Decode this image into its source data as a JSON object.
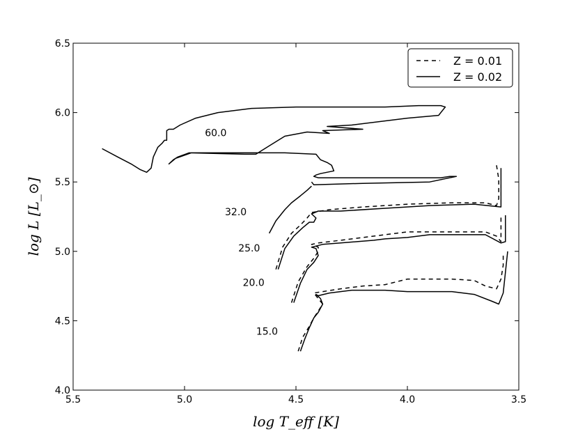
{
  "chart_data": {
    "type": "line",
    "xlabel": "log T_eff [K]",
    "ylabel": "log L [L_⊙]",
    "xlim": [
      5.5,
      3.5
    ],
    "ylim": [
      4.0,
      6.5
    ],
    "x_inverted": true,
    "xticks": [
      "5.5",
      "5.0",
      "4.5",
      "4.0",
      "3.5"
    ],
    "xtick_values": [
      5.5,
      5.0,
      4.5,
      4.0,
      3.5
    ],
    "yticks": [
      "4.0",
      "4.5",
      "5.0",
      "5.5",
      "6.0",
      "6.5"
    ],
    "ytick_values": [
      4.0,
      4.5,
      5.0,
      5.5,
      6.0,
      6.5
    ],
    "grid": false,
    "legend_position": "top-right",
    "legend": [
      {
        "label": "Z = 0.01",
        "style": "dashed"
      },
      {
        "label": "Z = 0.02",
        "style": "solid"
      }
    ],
    "annotations": [
      {
        "text": "60.0",
        "x": 4.86,
        "y": 5.83
      },
      {
        "text": "32.0",
        "x": 4.77,
        "y": 5.26
      },
      {
        "text": "25.0",
        "x": 4.71,
        "y": 5.0
      },
      {
        "text": "20.0",
        "x": 4.69,
        "y": 4.75
      },
      {
        "text": "15.0",
        "x": 4.63,
        "y": 4.4
      }
    ],
    "series": [
      {
        "style": "solid",
        "mass": "60.0",
        "points": [
          [
            5.37,
            5.74
          ],
          [
            5.3,
            5.68
          ],
          [
            5.24,
            5.63
          ],
          [
            5.2,
            5.59
          ],
          [
            5.17,
            5.57
          ],
          [
            5.15,
            5.6
          ],
          [
            5.14,
            5.68
          ],
          [
            5.12,
            5.75
          ],
          [
            5.1,
            5.78
          ],
          [
            5.09,
            5.8
          ],
          [
            5.08,
            5.8
          ],
          [
            5.08,
            5.87
          ],
          [
            5.07,
            5.88
          ],
          [
            5.05,
            5.88
          ],
          [
            5.02,
            5.91
          ],
          [
            4.95,
            5.96
          ],
          [
            4.85,
            6.0
          ],
          [
            4.7,
            6.03
          ],
          [
            4.5,
            6.04
          ],
          [
            4.3,
            6.04
          ],
          [
            4.1,
            6.04
          ],
          [
            3.95,
            6.05
          ],
          [
            3.85,
            6.05
          ],
          [
            3.83,
            6.04
          ],
          [
            3.86,
            5.98
          ],
          [
            4.0,
            5.96
          ],
          [
            4.25,
            5.91
          ],
          [
            4.36,
            5.9
          ],
          [
            4.2,
            5.88
          ],
          [
            4.38,
            5.87
          ],
          [
            4.35,
            5.85
          ],
          [
            4.45,
            5.86
          ],
          [
            4.55,
            5.83
          ],
          [
            4.62,
            5.76
          ],
          [
            4.68,
            5.7
          ],
          [
            4.73,
            5.7
          ],
          [
            4.98,
            5.71
          ],
          [
            5.03,
            5.68
          ],
          [
            5.05,
            5.66
          ],
          [
            5.07,
            5.63
          ],
          [
            5.04,
            5.67
          ],
          [
            4.97,
            5.71
          ],
          [
            4.55,
            5.71
          ],
          [
            4.41,
            5.7
          ],
          [
            4.39,
            5.66
          ],
          [
            4.36,
            5.64
          ],
          [
            4.34,
            5.62
          ],
          [
            4.33,
            5.58
          ],
          [
            4.39,
            5.56
          ],
          [
            4.41,
            5.55
          ],
          [
            4.42,
            5.54
          ],
          [
            4.4,
            5.53
          ],
          [
            4.1,
            5.53
          ],
          [
            3.85,
            5.53
          ],
          [
            3.81,
            5.54
          ],
          [
            3.78,
            5.54
          ],
          [
            3.84,
            5.52
          ],
          [
            3.9,
            5.5
          ],
          [
            4.2,
            5.49
          ],
          [
            4.42,
            5.48
          ],
          [
            4.43,
            5.5
          ]
        ]
      },
      {
        "style": "solid",
        "mass": "32.0",
        "points": [
          [
            4.62,
            5.13
          ],
          [
            4.59,
            5.22
          ],
          [
            4.55,
            5.3
          ],
          [
            4.52,
            5.35
          ],
          [
            4.48,
            5.4
          ],
          [
            4.45,
            5.44
          ],
          [
            4.43,
            5.47
          ]
        ]
      },
      {
        "style": "dashed",
        "mass": "25.0",
        "points": [
          [
            4.59,
            4.87
          ],
          [
            4.56,
            5.03
          ],
          [
            4.52,
            5.13
          ],
          [
            4.48,
            5.19
          ],
          [
            4.45,
            5.24
          ],
          [
            4.43,
            5.28
          ],
          [
            4.35,
            5.3
          ],
          [
            4.2,
            5.32
          ],
          [
            4.0,
            5.34
          ],
          [
            3.8,
            5.35
          ],
          [
            3.65,
            5.35
          ],
          [
            3.6,
            5.33
          ],
          [
            3.59,
            5.38
          ],
          [
            3.59,
            5.52
          ],
          [
            3.6,
            5.62
          ]
        ]
      },
      {
        "style": "solid",
        "mass": "25.0",
        "points": [
          [
            4.58,
            4.87
          ],
          [
            4.55,
            5.02
          ],
          [
            4.51,
            5.11
          ],
          [
            4.47,
            5.17
          ],
          [
            4.44,
            5.21
          ],
          [
            4.42,
            5.21
          ],
          [
            4.41,
            5.24
          ],
          [
            4.43,
            5.27
          ],
          [
            4.4,
            5.29
          ],
          [
            4.3,
            5.29
          ],
          [
            4.1,
            5.31
          ],
          [
            3.9,
            5.33
          ],
          [
            3.7,
            5.34
          ],
          [
            3.58,
            5.32
          ],
          [
            3.58,
            5.4
          ],
          [
            3.58,
            5.5
          ],
          [
            3.58,
            5.6
          ]
        ]
      },
      {
        "style": "dashed",
        "mass": "20.0",
        "points": [
          [
            4.52,
            4.63
          ],
          [
            4.49,
            4.78
          ],
          [
            4.45,
            4.89
          ],
          [
            4.42,
            4.95
          ],
          [
            4.4,
            5.0
          ],
          [
            4.4,
            5.03
          ],
          [
            4.43,
            5.05
          ],
          [
            4.4,
            5.06
          ],
          [
            4.35,
            5.07
          ],
          [
            4.2,
            5.1
          ],
          [
            4.1,
            5.12
          ],
          [
            4.0,
            5.14
          ],
          [
            3.8,
            5.14
          ],
          [
            3.65,
            5.14
          ],
          [
            3.6,
            5.11
          ],
          [
            3.58,
            5.07
          ],
          [
            3.58,
            5.18
          ],
          [
            3.58,
            5.25
          ]
        ]
      },
      {
        "style": "solid",
        "mass": "20.0",
        "points": [
          [
            4.51,
            4.63
          ],
          [
            4.48,
            4.77
          ],
          [
            4.45,
            4.87
          ],
          [
            4.42,
            4.92
          ],
          [
            4.4,
            4.97
          ],
          [
            4.41,
            5.02
          ],
          [
            4.43,
            5.03
          ],
          [
            4.38,
            5.05
          ],
          [
            4.3,
            5.06
          ],
          [
            4.15,
            5.08
          ],
          [
            4.1,
            5.09
          ],
          [
            4.0,
            5.1
          ],
          [
            3.9,
            5.12
          ],
          [
            3.8,
            5.12
          ],
          [
            3.65,
            5.12
          ],
          [
            3.58,
            5.06
          ],
          [
            3.56,
            5.07
          ],
          [
            3.56,
            5.15
          ],
          [
            3.56,
            5.26
          ]
        ]
      },
      {
        "style": "dashed",
        "mass": "15.0",
        "points": [
          [
            4.49,
            4.28
          ],
          [
            4.47,
            4.38
          ],
          [
            4.44,
            4.46
          ],
          [
            4.42,
            4.52
          ],
          [
            4.4,
            4.57
          ],
          [
            4.38,
            4.62
          ],
          [
            4.42,
            4.7
          ],
          [
            4.38,
            4.71
          ],
          [
            4.3,
            4.73
          ],
          [
            4.2,
            4.75
          ],
          [
            4.1,
            4.76
          ],
          [
            4.05,
            4.78
          ],
          [
            4.0,
            4.8
          ],
          [
            3.8,
            4.8
          ],
          [
            3.7,
            4.79
          ],
          [
            3.65,
            4.75
          ],
          [
            3.6,
            4.73
          ],
          [
            3.58,
            4.8
          ],
          [
            3.57,
            4.9
          ],
          [
            3.57,
            4.98
          ]
        ]
      },
      {
        "style": "solid",
        "mass": "15.0",
        "points": [
          [
            4.48,
            4.28
          ],
          [
            4.46,
            4.37
          ],
          [
            4.44,
            4.45
          ],
          [
            4.42,
            4.52
          ],
          [
            4.4,
            4.56
          ],
          [
            4.38,
            4.62
          ],
          [
            4.39,
            4.66
          ],
          [
            4.41,
            4.69
          ],
          [
            4.4,
            4.68
          ],
          [
            4.35,
            4.7
          ],
          [
            4.25,
            4.72
          ],
          [
            4.1,
            4.72
          ],
          [
            4.0,
            4.71
          ],
          [
            3.8,
            4.71
          ],
          [
            3.7,
            4.69
          ],
          [
            3.62,
            4.64
          ],
          [
            3.59,
            4.62
          ],
          [
            3.57,
            4.7
          ],
          [
            3.56,
            4.85
          ],
          [
            3.55,
            5.0
          ]
        ]
      }
    ]
  }
}
